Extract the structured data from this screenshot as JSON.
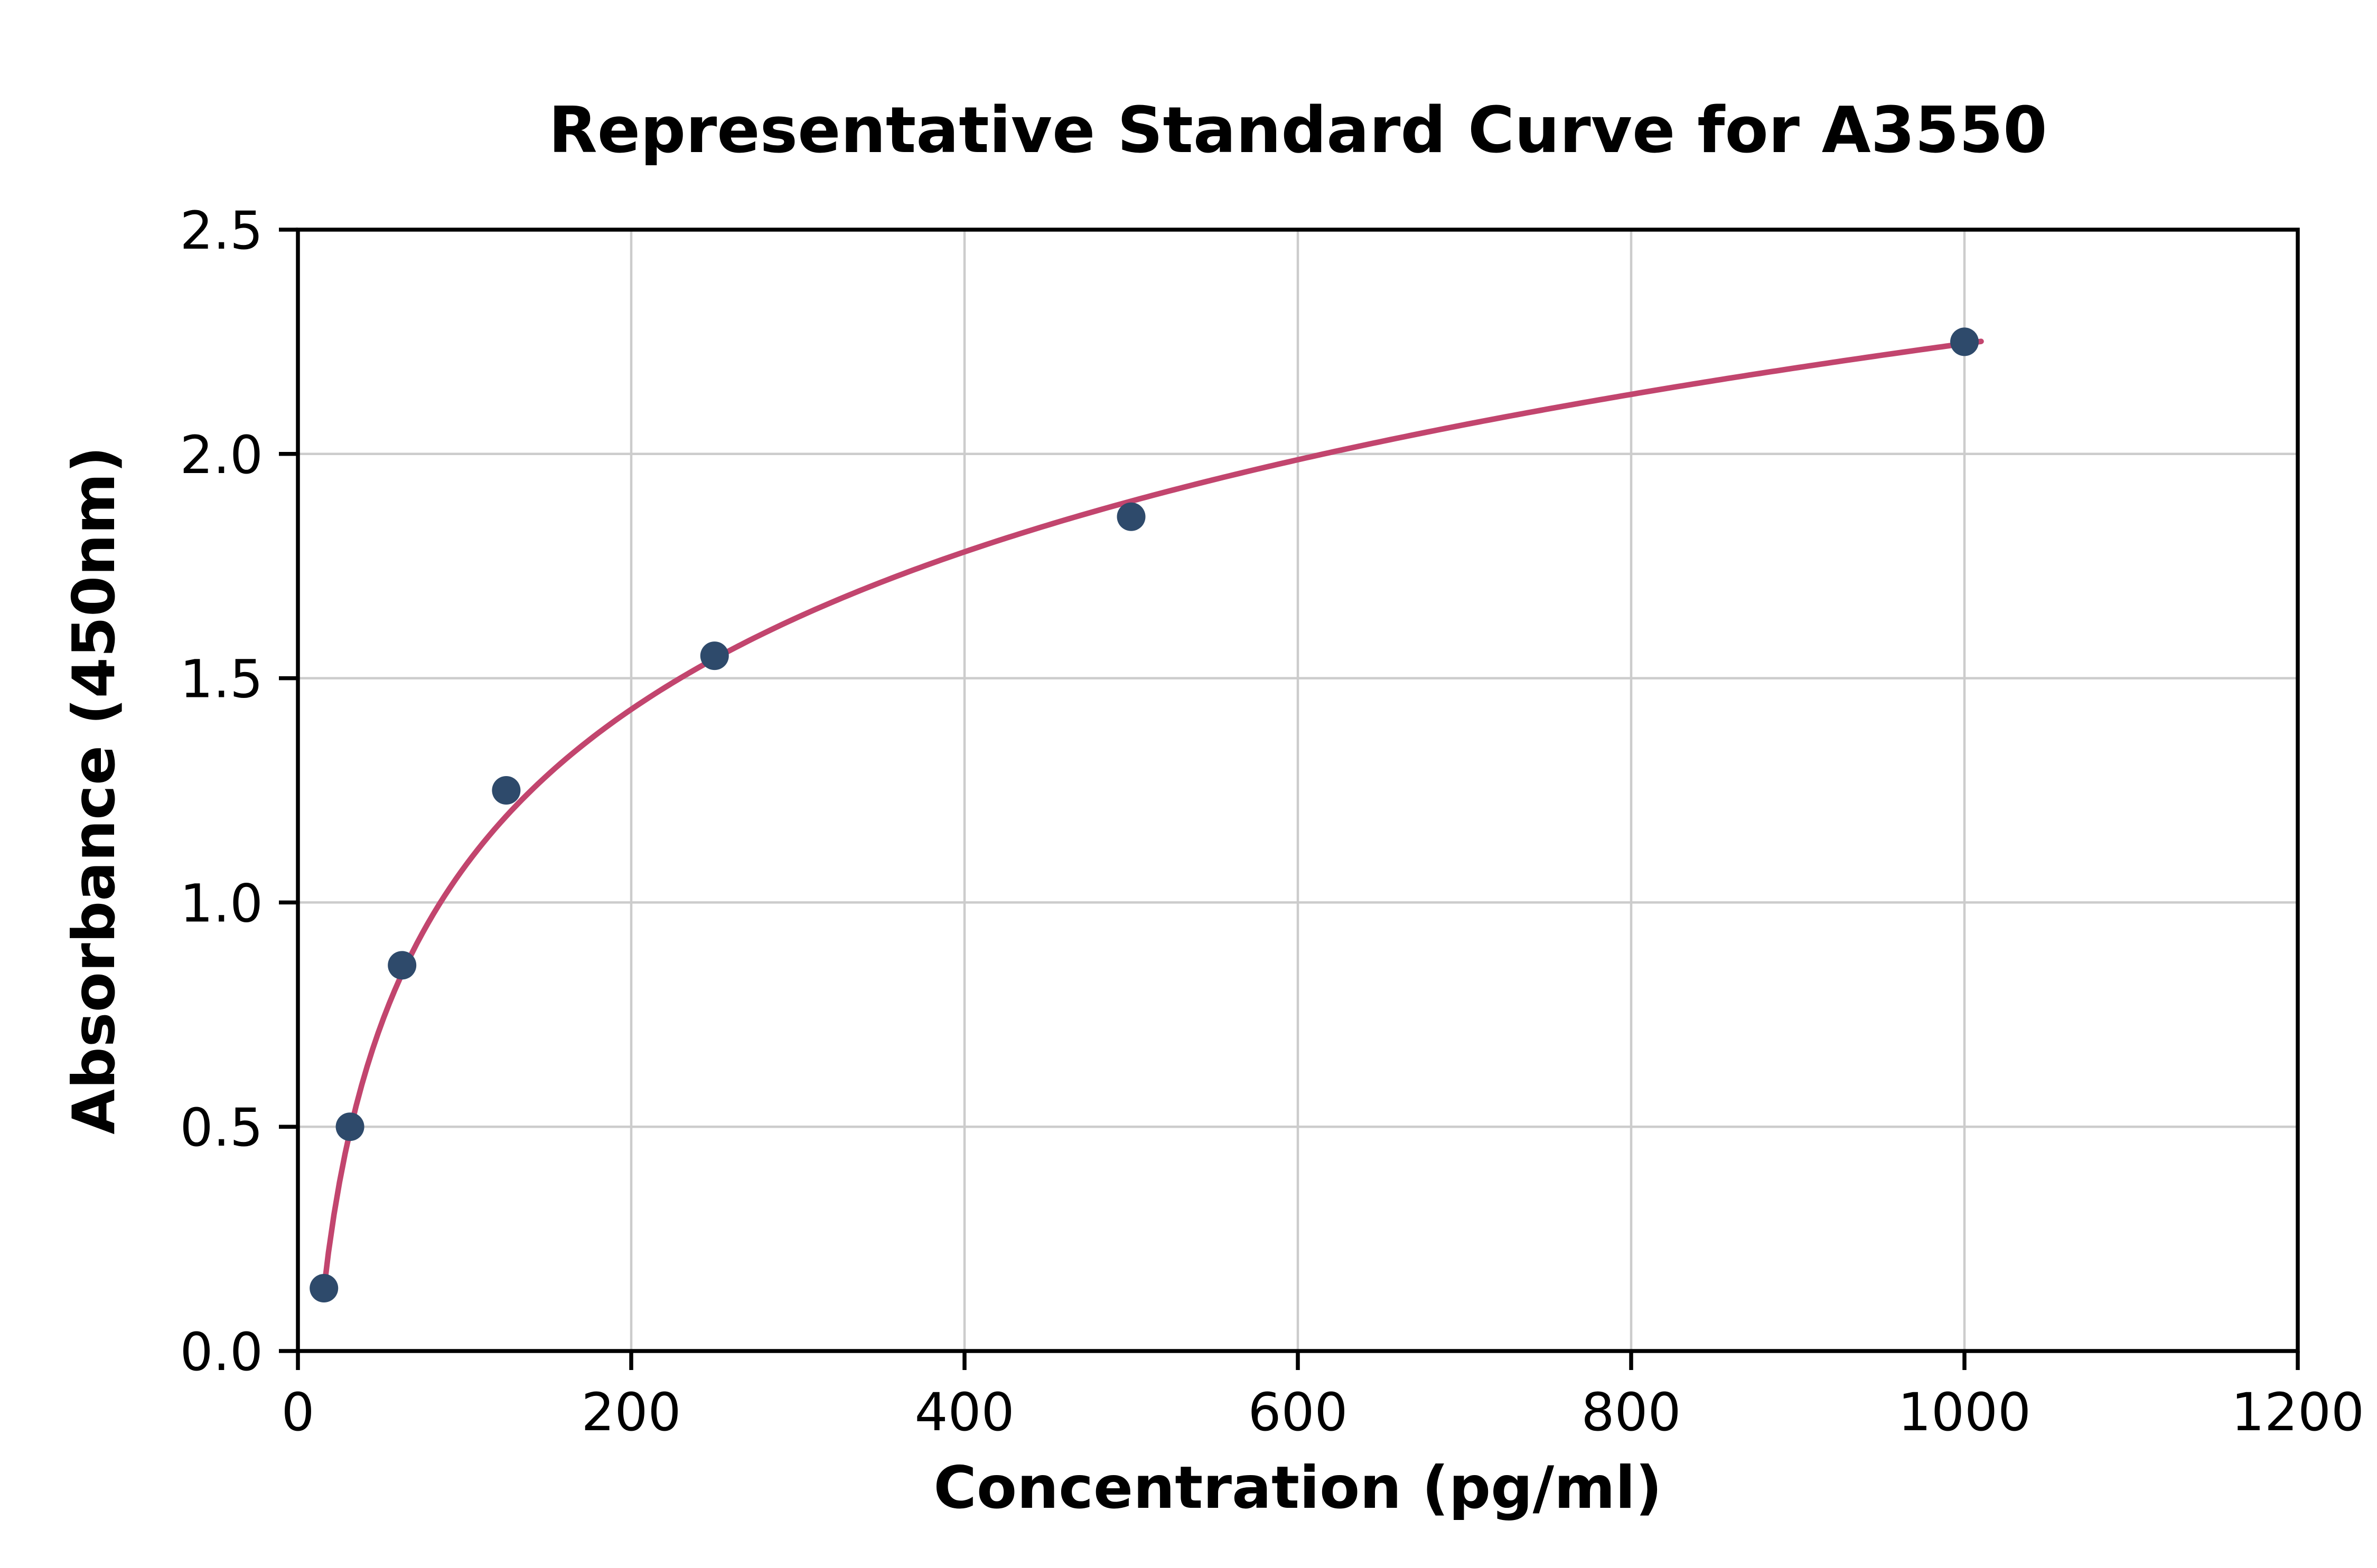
{
  "chart_data": {
    "type": "scatter",
    "title": "Representative Standard Curve for A3550",
    "xlabel": "Concentration (pg/ml)",
    "ylabel": "Absorbance (450nm)",
    "xlim": [
      0,
      1200
    ],
    "ylim": [
      0,
      2.5
    ],
    "x_ticks": [
      0,
      200,
      400,
      600,
      800,
      1000,
      1200
    ],
    "y_ticks": [
      "0.0",
      "0.5",
      "1.0",
      "1.5",
      "2.0",
      "2.5"
    ],
    "grid": true,
    "legend": "none",
    "series": [
      {
        "name": "standard-points",
        "type": "scatter",
        "color": "#2e4a6b",
        "x": [
          15.6,
          31.25,
          62.5,
          125,
          250,
          500,
          1000
        ],
        "y": [
          0.14,
          0.5,
          0.86,
          1.25,
          1.55,
          1.86,
          2.25
        ]
      },
      {
        "name": "fitted-curve",
        "type": "line",
        "color": "#c2456e",
        "fit": {
          "kind": "log",
          "a": 0.5066,
          "b": -1.2536,
          "x_start": 15,
          "x_end": 1010
        }
      }
    ],
    "styles": {
      "grid_color": "#cccccc",
      "axis_color": "#000000",
      "background": "#ffffff",
      "marker_radius": 9,
      "line_width": 3.5
    }
  }
}
